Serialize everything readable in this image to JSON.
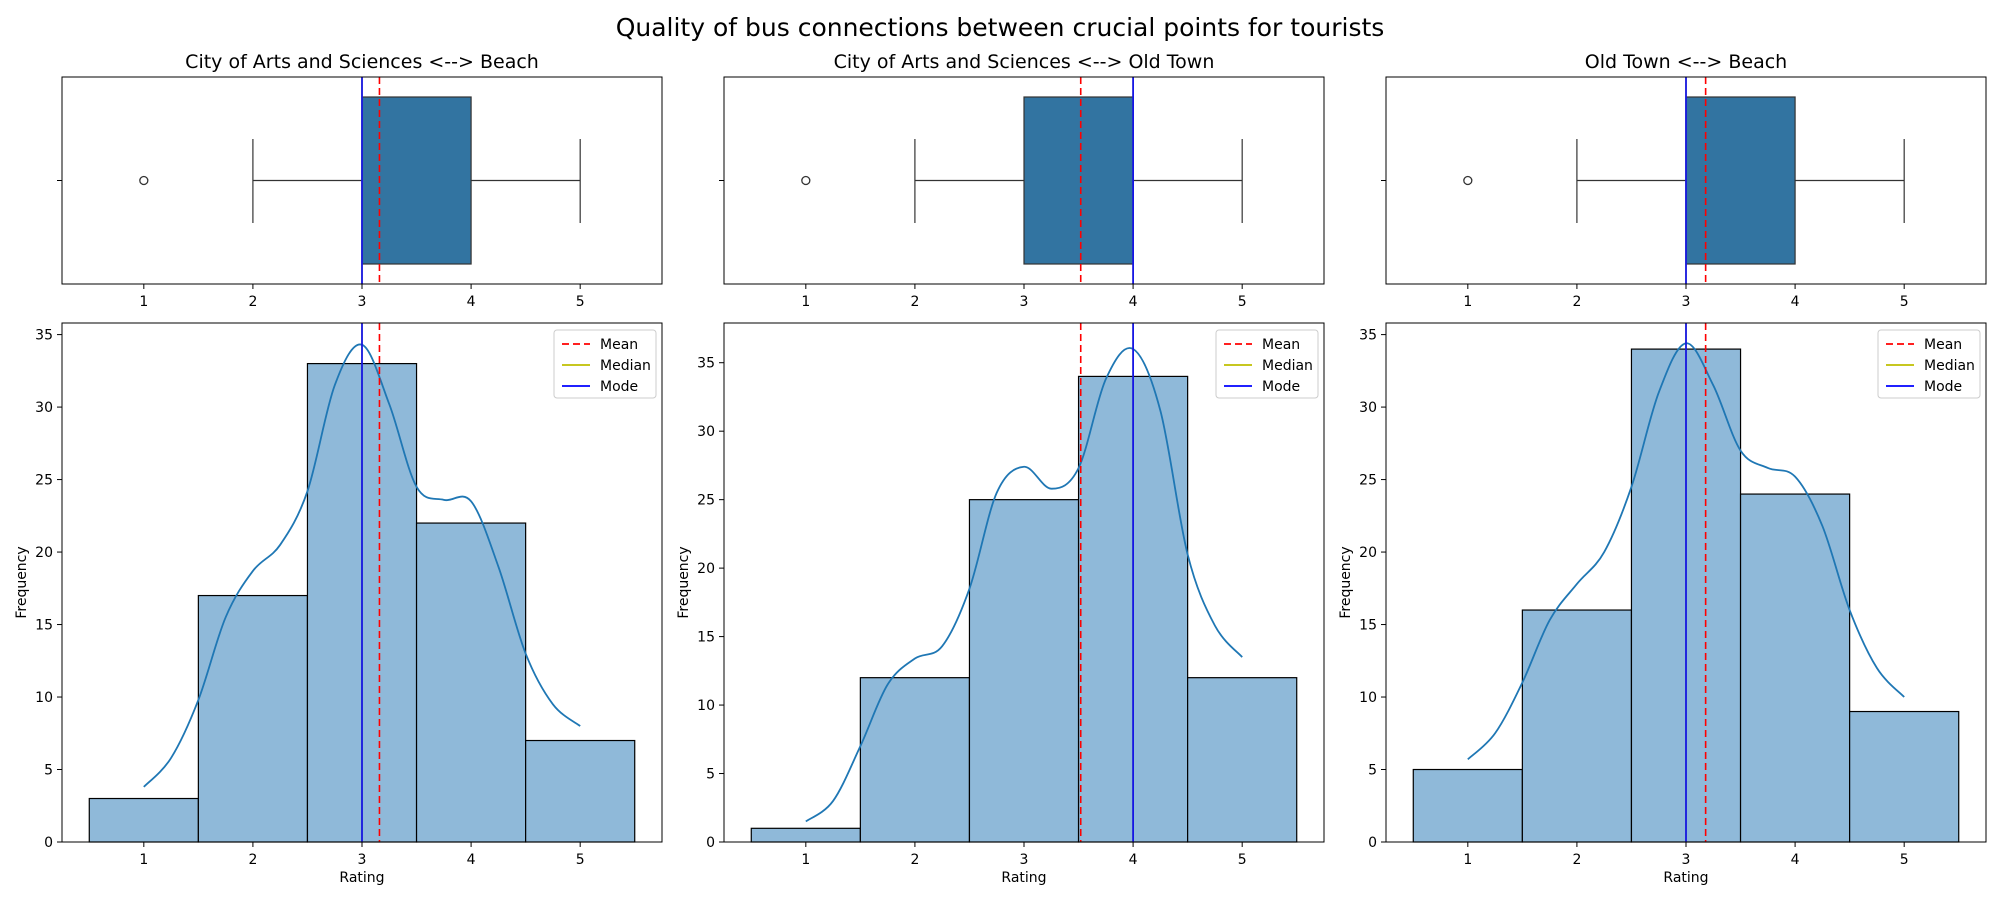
{
  "figure": {
    "title": "Quality of bus connections between crucial points for tourists"
  },
  "colors": {
    "box_fill": "#3274a1",
    "hist_fill": "#8fb9d9",
    "kde_line": "#1f77b4",
    "mean_line": "#ff0000",
    "median_line": "#bfbf00",
    "mode_line": "#0000ff"
  },
  "legend": {
    "mean": "Mean",
    "median": "Median",
    "mode": "Mode"
  },
  "chart_data": [
    {
      "type": "histogram",
      "title": "City of Arts and Sciences <--> Beach",
      "xlabel": "Rating",
      "ylabel": "Frequency",
      "categories": [
        1,
        2,
        3,
        4,
        5
      ],
      "values": [
        3,
        17,
        33,
        22,
        7
      ],
      "xlim": [
        0.25,
        5.75
      ],
      "ylim": [
        0,
        35.8
      ],
      "yticks": [
        0,
        5,
        10,
        15,
        20,
        25,
        30,
        35
      ],
      "xticks": [
        1,
        2,
        3,
        4,
        5
      ],
      "mean": 3.16,
      "median": 3,
      "mode": 3,
      "box": {
        "whisker_low": 2,
        "q1": 3,
        "median": 3,
        "q3": 4,
        "whisker_high": 5,
        "outliers": [
          1
        ]
      },
      "kde": {
        "x": [
          1,
          1.25,
          1.5,
          1.75,
          2,
          2.25,
          2.5,
          2.75,
          3,
          3.25,
          3.5,
          3.75,
          4,
          4.25,
          4.5,
          4.75,
          5
        ],
        "y": [
          3.8,
          5.8,
          9.8,
          15.5,
          18.7,
          20.5,
          24.2,
          31.5,
          34.3,
          30.2,
          24.5,
          23.6,
          23.5,
          19.0,
          13.0,
          9.5,
          8.0
        ]
      },
      "legend_position": "top-right"
    },
    {
      "type": "histogram",
      "title": "City of Arts and Sciences <--> Old Town",
      "xlabel": "Rating",
      "ylabel": "Frequency",
      "categories": [
        1,
        2,
        3,
        4,
        5
      ],
      "values": [
        1,
        12,
        25,
        34,
        12
      ],
      "xlim": [
        0.25,
        5.75
      ],
      "ylim": [
        0,
        37.9
      ],
      "yticks": [
        0,
        5,
        10,
        15,
        20,
        25,
        30,
        35
      ],
      "xticks": [
        1,
        2,
        3,
        4,
        5
      ],
      "mean": 3.52,
      "median": 4,
      "mode": 4,
      "box": {
        "whisker_low": 2,
        "q1": 3,
        "median": 4,
        "q3": 4,
        "whisker_high": 5,
        "outliers": [
          1
        ]
      },
      "kde": {
        "x": [
          1,
          1.25,
          1.5,
          1.75,
          2,
          2.25,
          2.5,
          2.75,
          3,
          3.25,
          3.5,
          3.75,
          4,
          4.25,
          4.5,
          4.75,
          5
        ],
        "y": [
          1.5,
          3.0,
          7.0,
          11.5,
          13.4,
          14.3,
          18.5,
          25.5,
          27.4,
          25.8,
          27.3,
          33.8,
          36.0,
          31.5,
          21.0,
          15.8,
          13.5
        ]
      },
      "legend_position": "top-right"
    },
    {
      "type": "histogram",
      "title": "Old Town <--> Beach",
      "xlabel": "Rating",
      "ylabel": "Frequency",
      "categories": [
        1,
        2,
        3,
        4,
        5
      ],
      "values": [
        5,
        16,
        34,
        24,
        9
      ],
      "xlim": [
        0.25,
        5.75
      ],
      "ylim": [
        0,
        35.8
      ],
      "yticks": [
        0,
        5,
        10,
        15,
        20,
        25,
        30,
        35
      ],
      "xticks": [
        1,
        2,
        3,
        4,
        5
      ],
      "mean": 3.18,
      "median": 3,
      "mode": 3,
      "box": {
        "whisker_low": 2,
        "q1": 3,
        "median": 3,
        "q3": 4,
        "whisker_high": 5,
        "outliers": [
          1
        ]
      },
      "kde": {
        "x": [
          1,
          1.25,
          1.5,
          1.75,
          2,
          2.25,
          2.5,
          2.75,
          3,
          3.25,
          3.5,
          3.75,
          4,
          4.25,
          4.5,
          4.75,
          5
        ],
        "y": [
          5.7,
          7.5,
          11.0,
          15.3,
          17.8,
          20.0,
          24.5,
          31.0,
          34.4,
          31.5,
          27.0,
          25.8,
          25.2,
          21.8,
          16.0,
          12.0,
          10.0
        ]
      },
      "legend_position": "top-right"
    }
  ]
}
